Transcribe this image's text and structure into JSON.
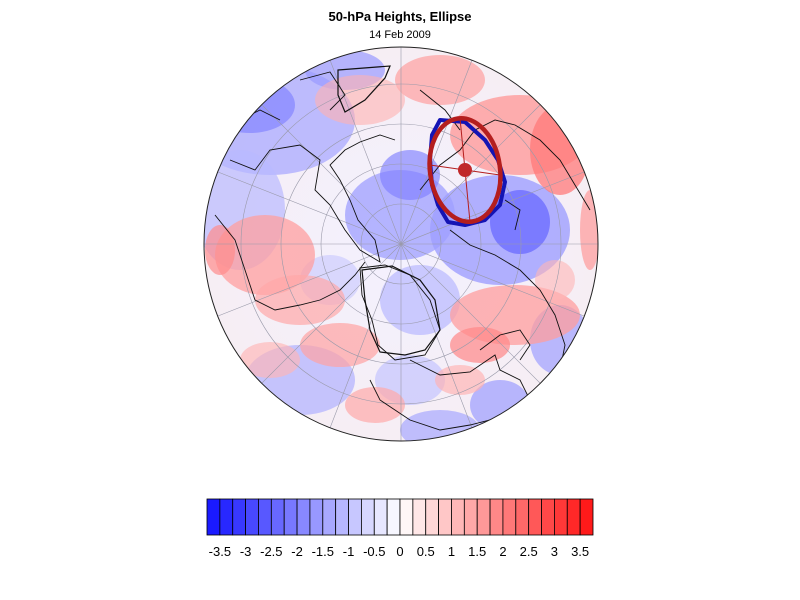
{
  "title": "50-hPa Heights, Ellipse",
  "subtitle": "14 Feb 2009",
  "colorbar": {
    "min": -3.75,
    "max": 3.75,
    "step": 0.25,
    "tick_labels": [
      "-3.5",
      "-3",
      "-2.5",
      "-2",
      "-1.5",
      "-1",
      "-0.5",
      "0",
      "0.5",
      "1",
      "1.5",
      "2",
      "2.5",
      "3",
      "3.5"
    ],
    "colors": {
      "negative": "#1a1aff",
      "neutral": "#ffffff",
      "positive": "#ff1a1a"
    }
  },
  "overlays": {
    "ellipse_outline_color": "#1414b4",
    "fitted_ellipse_color": "#b41e1e",
    "center_marker_color": "#c0282a"
  }
}
